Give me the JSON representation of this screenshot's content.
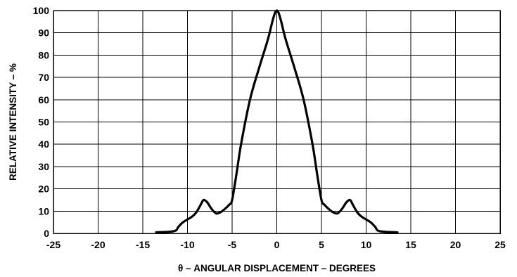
{
  "chart_data": {
    "type": "line",
    "xlabel": "θ – ANGULAR DISPLACEMENT – DEGREES",
    "ylabel": "RELATIVE INTENSITY – %",
    "xlim": [
      -25,
      25
    ],
    "ylim": [
      0,
      100
    ],
    "xticks": [
      -25,
      -20,
      -15,
      -10,
      -5,
      0,
      5,
      10,
      15,
      20,
      25
    ],
    "yticks": [
      0,
      10,
      20,
      30,
      40,
      50,
      60,
      70,
      80,
      90,
      100
    ],
    "grid": true,
    "series": [
      {
        "x": [
          -13.5,
          -11.5,
          -11.0,
          -10.5,
          -9.5,
          -9.0,
          -8.5,
          -8.2,
          -7.8,
          -7.3,
          -6.8,
          -6.3,
          -5.8,
          -5.3,
          -5.0,
          -4.5,
          -4.0,
          -3.0,
          -2.0,
          -1.0,
          -0.5,
          -0.2,
          0.0,
          0.2,
          0.5,
          1.0,
          2.0,
          3.0,
          4.0,
          4.5,
          5.0,
          5.3,
          5.8,
          6.3,
          6.8,
          7.3,
          7.8,
          8.2,
          8.5,
          9.0,
          9.5,
          10.5,
          11.0,
          11.5,
          13.5
        ],
        "y": [
          0.5,
          1.0,
          3.0,
          5.0,
          7.5,
          9.5,
          13.0,
          15.0,
          14.0,
          11.0,
          9.0,
          9.5,
          11.0,
          13.0,
          15.0,
          27.0,
          40.0,
          60.0,
          74.0,
          87.0,
          95.0,
          99.0,
          100.0,
          99.0,
          95.0,
          87.0,
          74.0,
          60.0,
          40.0,
          27.0,
          15.0,
          13.0,
          11.0,
          9.5,
          9.0,
          11.0,
          14.0,
          15.0,
          13.0,
          9.5,
          7.5,
          5.0,
          3.0,
          1.0,
          0.5
        ]
      }
    ]
  }
}
